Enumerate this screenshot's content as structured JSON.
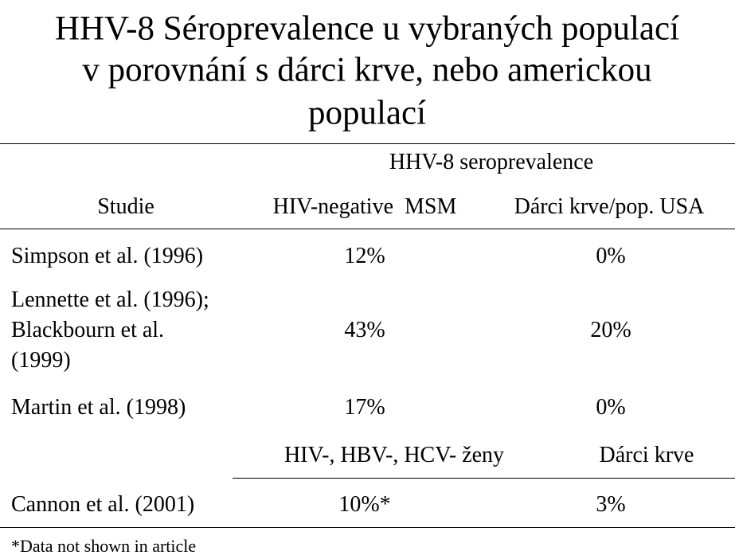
{
  "title": [
    "HHV-8 Séroprevalence u vybraných populací",
    "v porovnání s dárci krve, nebo americkou",
    "populací"
  ],
  "table": {
    "group_header": "HHV-8 seroprevalence",
    "header": [
      "Studie",
      "HIV-negative  MSM",
      "Dárci krve/pop. USA"
    ],
    "rows": [
      [
        "Simpson et al. (1996)",
        "12%",
        "0%"
      ],
      [
        "Lennette et al. (1996); Blackbourn et al. (1999)",
        "43%",
        "20%"
      ],
      [
        "Martin et al. (1998)",
        "17%",
        "0%"
      ]
    ],
    "subheader": [
      "HIV-, HBV-, HCV- ženy",
      "Dárci krve"
    ],
    "rows2": [
      [
        "Cannon et al. (2001)",
        "10%*",
        "3%"
      ]
    ]
  },
  "footnote": "*Data not shown in article"
}
